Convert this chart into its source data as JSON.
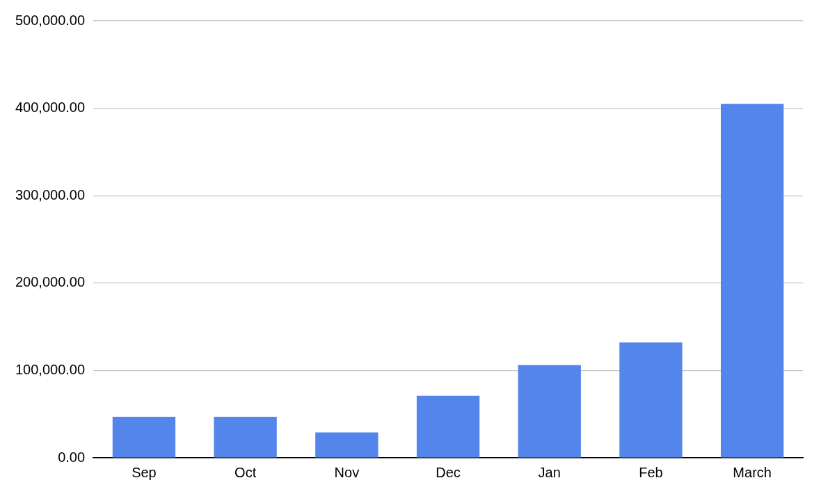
{
  "chart_data": {
    "type": "bar",
    "categories": [
      "Sep",
      "Oct",
      "Nov",
      "Dec",
      "Jan",
      "Feb",
      "March"
    ],
    "series": [
      {
        "color": "#5485ea",
        "values": [
          47000,
          47000,
          29000,
          71000,
          106000,
          132000,
          405000
        ]
      }
    ],
    "ylim": [
      0,
      500000
    ],
    "yticks": [
      {
        "value": 0,
        "label": "0.00"
      },
      {
        "value": 100000,
        "label": "100,000.00"
      },
      {
        "value": 200000,
        "label": "200,000.00"
      },
      {
        "value": 300000,
        "label": "300,000.00"
      },
      {
        "value": 400000,
        "label": "400,000.00"
      },
      {
        "value": 500000,
        "label": "500,000.00"
      }
    ],
    "grid": "y",
    "legend": false
  }
}
